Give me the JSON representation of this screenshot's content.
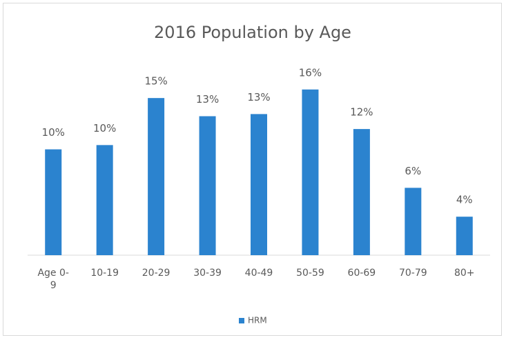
{
  "chart_data": {
    "type": "bar",
    "title": "2016 Population by Age",
    "categories": [
      "Age 0-9",
      "10-19",
      "20-29",
      "30-39",
      "40-49",
      "50-59",
      "60-69",
      "70-79",
      "80+"
    ],
    "series": [
      {
        "name": "HRM",
        "color": "#2b83cf",
        "values": [
          9.9,
          10.3,
          14.7,
          13.0,
          13.2,
          15.5,
          11.8,
          6.3,
          3.6
        ],
        "value_labels": [
          "10%",
          "10%",
          "15%",
          "13%",
          "13%",
          "16%",
          "12%",
          "6%",
          "4%"
        ]
      }
    ],
    "ylim": [
      0,
      18
    ],
    "grid": false,
    "legend": "bottom"
  }
}
